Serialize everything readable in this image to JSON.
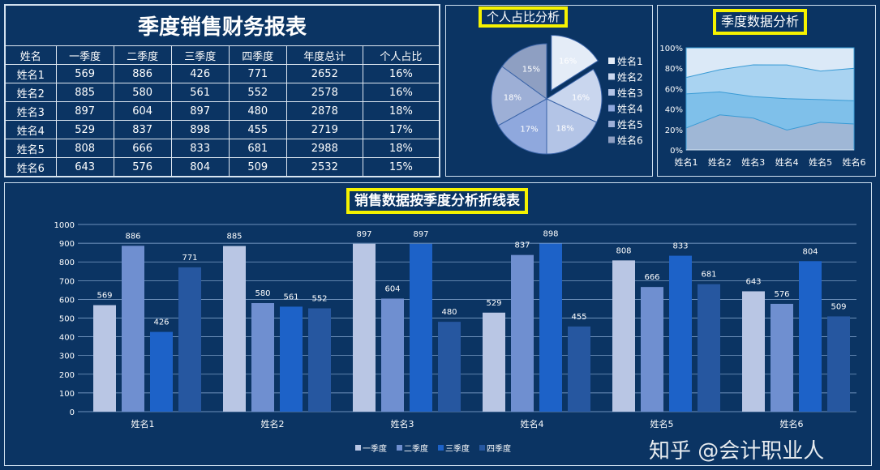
{
  "table": {
    "title": "季度销售财务报表",
    "headers": [
      "姓名",
      "一季度",
      "二季度",
      "三季度",
      "四季度",
      "年度总计",
      "个人占比"
    ],
    "rows": [
      [
        "姓名1",
        "569",
        "886",
        "426",
        "771",
        "2652",
        "16%"
      ],
      [
        "姓名2",
        "885",
        "580",
        "561",
        "552",
        "2578",
        "16%"
      ],
      [
        "姓名3",
        "897",
        "604",
        "897",
        "480",
        "2878",
        "18%"
      ],
      [
        "姓名4",
        "529",
        "837",
        "898",
        "455",
        "2719",
        "17%"
      ],
      [
        "姓名5",
        "808",
        "666",
        "833",
        "681",
        "2988",
        "18%"
      ],
      [
        "姓名6",
        "643",
        "576",
        "804",
        "509",
        "2532",
        "15%"
      ]
    ]
  },
  "chart_data": [
    {
      "type": "pie",
      "title": "个人占比分析",
      "labels": [
        "姓名1",
        "姓名2",
        "姓名3",
        "姓名4",
        "姓名5",
        "姓名6"
      ],
      "values": [
        16,
        16,
        18,
        17,
        18,
        15
      ],
      "data_labels": [
        "16%",
        "16%",
        "18%",
        "17%",
        "18%",
        "15%"
      ],
      "exploded": "姓名1",
      "legend": "right",
      "colors": [
        "#e4ecf7",
        "#c9d6ee",
        "#b3c4e6",
        "#8fa8dd",
        "#9dafd6",
        "#8e9fc2"
      ]
    },
    {
      "type": "area",
      "stacked": "percent",
      "title": "季度数据分析",
      "categories": [
        "姓名1",
        "姓名2",
        "姓名3",
        "姓名4",
        "姓名5",
        "姓名6"
      ],
      "series": [
        {
          "values": [
            569,
            885,
            897,
            529,
            808,
            643
          ]
        },
        {
          "values": [
            886,
            580,
            604,
            837,
            666,
            576
          ]
        },
        {
          "values": [
            426,
            561,
            897,
            898,
            833,
            804
          ]
        },
        {
          "values": [
            771,
            552,
            480,
            455,
            681,
            509
          ]
        }
      ],
      "yticks": [
        "0%",
        "20%",
        "40%",
        "60%",
        "80%",
        "100%"
      ],
      "ylim": [
        0,
        100
      ]
    },
    {
      "type": "bar",
      "title": "销售数据按季度分析折线表",
      "categories": [
        "姓名1",
        "姓名2",
        "姓名3",
        "姓名4",
        "姓名5",
        "姓名6"
      ],
      "series": [
        {
          "name": "一季度",
          "values": [
            569,
            885,
            897,
            529,
            808,
            643
          ],
          "color": "#b9c6e4"
        },
        {
          "name": "二季度",
          "values": [
            886,
            580,
            604,
            837,
            666,
            576
          ],
          "color": "#6f8fd0"
        },
        {
          "name": "三季度",
          "values": [
            426,
            561,
            897,
            898,
            833,
            804
          ],
          "color": "#1d62c8"
        },
        {
          "name": "四季度",
          "values": [
            771,
            552,
            480,
            455,
            681,
            509
          ],
          "color": "#2657a0"
        }
      ],
      "ylim": [
        0,
        1000
      ],
      "yticks": [
        0,
        100,
        200,
        300,
        400,
        500,
        600,
        700,
        800,
        900,
        1000
      ],
      "grid": true,
      "legend": "bottom"
    }
  ],
  "watermark": "知乎 @会计职业人"
}
